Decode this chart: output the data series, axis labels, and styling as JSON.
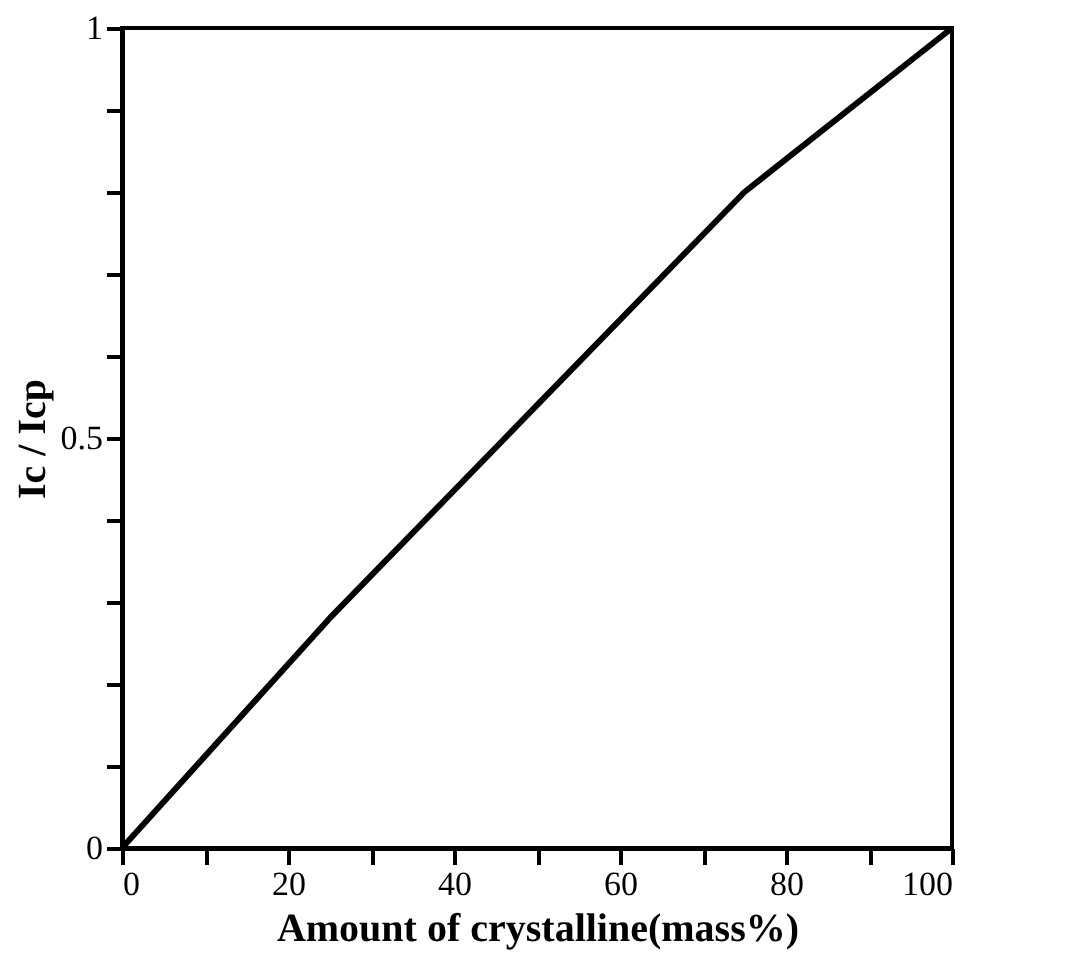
{
  "chart_data": {
    "type": "line",
    "xlabel": "Amount of crystalline(mass%)",
    "ylabel": "Ic / Icp",
    "x": [
      0,
      25,
      50,
      75,
      100
    ],
    "series": [
      {
        "color": "#000000",
        "values": [
          0,
          0.28,
          0.54,
          0.8,
          1
        ]
      }
    ],
    "xlim": [
      0,
      100
    ],
    "ylim": [
      0,
      1
    ],
    "xticks": [
      0,
      {
        "value": 10,
        "label": null
      },
      20,
      {
        "value": 30,
        "label": null
      },
      40,
      {
        "value": 50,
        "label": null
      },
      60,
      {
        "value": 70,
        "label": null
      },
      80,
      {
        "value": 90,
        "label": null
      },
      100
    ],
    "yticks": [
      0,
      {
        "value": 0.1,
        "label": null
      },
      {
        "value": 0.2,
        "label": null
      },
      {
        "value": 0.3,
        "label": null
      },
      {
        "value": 0.4,
        "label": null
      },
      0.5,
      {
        "value": 0.6,
        "label": null
      },
      {
        "value": 0.7,
        "label": null
      },
      {
        "value": 0.8,
        "label": null
      },
      {
        "value": 0.9,
        "label": null
      },
      1
    ],
    "grid": false,
    "marker": "none",
    "line_style": "solid"
  }
}
